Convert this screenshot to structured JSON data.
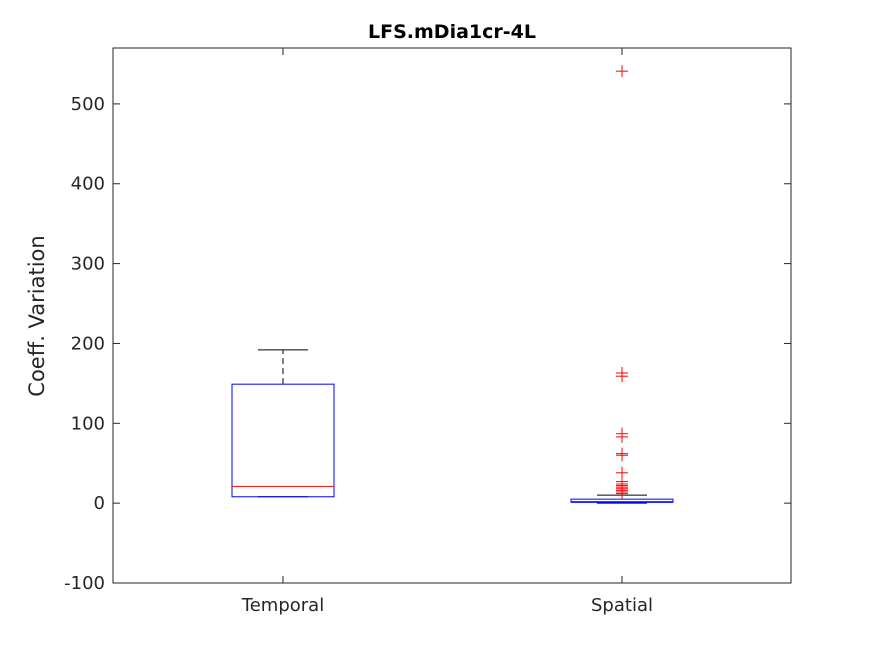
{
  "chart_data": {
    "type": "box",
    "title": "LFS.mDia1cr-4L",
    "xlabel": "",
    "ylabel": "Coeff. Variation",
    "ylim": [
      -100,
      570
    ],
    "yticks": [
      -100,
      0,
      100,
      200,
      300,
      400,
      500
    ],
    "ytick_labels": [
      "-100",
      "0",
      "100",
      "200",
      "300",
      "400",
      "500"
    ],
    "grid": false,
    "categories": [
      "Temporal",
      "Spatial"
    ],
    "boxes": [
      {
        "label": "Temporal",
        "q1": 8,
        "median": 21,
        "q3": 149,
        "whisker_low": 8,
        "whisker_high": 192,
        "outliers": []
      },
      {
        "label": "Spatial",
        "q1": 1,
        "median": 2,
        "q3": 5,
        "whisker_low": 0,
        "whisker_high": 10,
        "outliers": [
          12,
          14,
          16,
          18,
          20,
          22,
          24,
          27,
          38,
          60,
          62,
          83,
          87,
          159,
          163,
          541
        ]
      }
    ],
    "colors": {
      "box": "#0000ff",
      "median": "#ff0000",
      "whisker": "#000000",
      "outlier": "#ff0000",
      "axis": "#262626"
    }
  }
}
